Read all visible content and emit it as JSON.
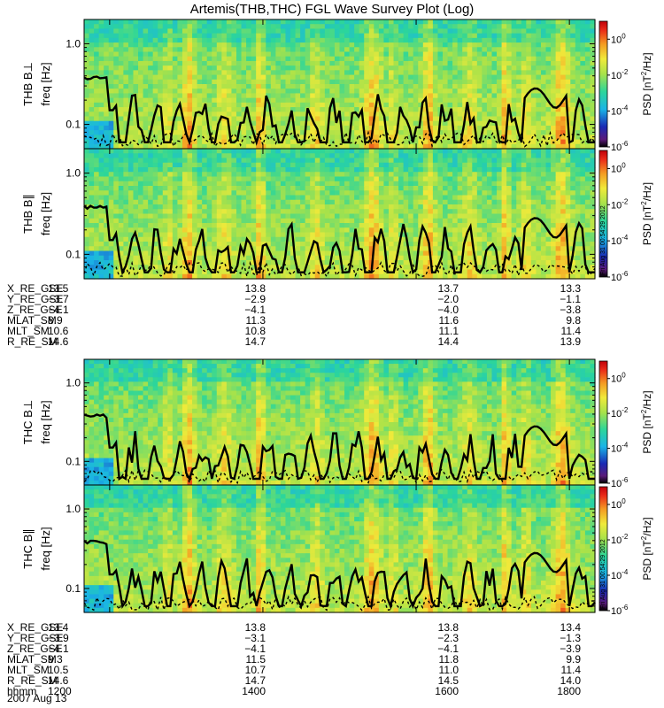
{
  "chart_data": {
    "type": "heatmap",
    "title": "Artemis(THB,THC) FGL Wave Survey Plot (Log)",
    "date_label": "2007 Aug 13",
    "stamp": "Fri Aug 31 00:54:29 2012",
    "colorbar": {
      "label_main": "PSD [nT",
      "label_sup": "2",
      "label_tail": "/Hz]",
      "range": [
        1e-06,
        10
      ],
      "ticks": [
        {
          "base": "10",
          "exp": "0",
          "value": 1
        },
        {
          "base": "10",
          "exp": "-2",
          "value": 0.01
        },
        {
          "base": "10",
          "exp": "-4",
          "value": 0.0001
        },
        {
          "base": "10",
          "exp": "-6",
          "value": 1e-06
        }
      ]
    },
    "y_axis": {
      "label": "freq [Hz]",
      "scale": "log",
      "range": [
        0.05,
        2.0
      ],
      "ticks": [
        {
          "label": "1.0",
          "value": 1.0
        },
        {
          "label": "0.1",
          "value": 0.1
        }
      ]
    },
    "x_axis": {
      "range_hhmm": [
        1140,
        1820
      ],
      "ticks_hhmm": [
        1200,
        1400,
        1600,
        1800
      ]
    },
    "panels": [
      {
        "id": "thb_bperp",
        "probe": "THB",
        "component": "B⊥",
        "label": "THB B⊥"
      },
      {
        "id": "thb_bpar",
        "probe": "THB",
        "component": "B∥",
        "label": "THB B∥"
      },
      {
        "id": "thc_bperp",
        "probe": "THC",
        "component": "B⊥",
        "label": "THC B⊥"
      },
      {
        "id": "thc_bpar",
        "probe": "THC",
        "component": "B∥",
        "label": "THC B∥"
      }
    ],
    "ephemeris": [
      {
        "probe": "THB",
        "rows": [
          {
            "name": "X_RE_GSE",
            "values": [
              "13.5",
              "13.8",
              "13.7",
              "13.3"
            ]
          },
          {
            "name": "Y_RE_GSE",
            "values": [
              "−3.7",
              "−2.9",
              "−2.0",
              "−1.1"
            ]
          },
          {
            "name": "Z_RE_GSE",
            "values": [
              "−4.1",
              "−4.1",
              "−4.0",
              "−3.8"
            ]
          },
          {
            "name": "MLAT_SM",
            "values": [
              "8.9",
              "11.3",
              "11.6",
              "9.8"
            ]
          },
          {
            "name": "MLT_SM",
            "values": [
              "10.6",
              "10.8",
              "11.1",
              "11.4"
            ]
          },
          {
            "name": "R_RE_SM",
            "values": [
              "14.6",
              "14.7",
              "14.4",
              "13.9"
            ]
          }
        ]
      },
      {
        "probe": "THC",
        "rows": [
          {
            "name": "X_RE_GSE",
            "values": [
              "13.4",
              "13.8",
              "13.8",
              "13.4"
            ]
          },
          {
            "name": "Y_RE_GSE",
            "values": [
              "−3.9",
              "−3.1",
              "−2.3",
              "−1.3"
            ]
          },
          {
            "name": "Z_RE_GSE",
            "values": [
              "−4.1",
              "−4.1",
              "−4.1",
              "−3.9"
            ]
          },
          {
            "name": "MLAT_SM",
            "values": [
              "9.3",
              "11.5",
              "11.8",
              "9.9"
            ]
          },
          {
            "name": "MLT_SM",
            "values": [
              "10.5",
              "10.7",
              "11.0",
              "11.4"
            ]
          },
          {
            "name": "R_RE_SM",
            "values": [
              "14.6",
              "14.7",
              "14.5",
              "14.0"
            ]
          },
          {
            "name": "hhmm",
            "values": [
              "1200",
              "1400",
              "1600",
              "1800"
            ]
          }
        ]
      }
    ]
  }
}
